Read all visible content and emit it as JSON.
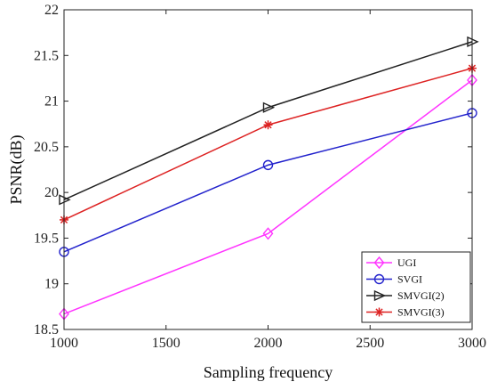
{
  "chart_data": {
    "type": "line",
    "xlabel": "Sampling frequency",
    "ylabel": "PSNR(dB)",
    "x": [
      1000,
      2000,
      3000
    ],
    "xlim": [
      1000,
      3000
    ],
    "ylim": [
      18.5,
      22
    ],
    "xticks": [
      "1000",
      "1500",
      "2000",
      "2500",
      "3000"
    ],
    "yticks": [
      "18.5",
      "19",
      "19.5",
      "20",
      "20.5",
      "21",
      "21.5",
      "22"
    ],
    "grid": false,
    "legend_position": "bottom-right",
    "series": [
      {
        "name": "UGI",
        "values": [
          18.67,
          19.55,
          21.23
        ],
        "color": "#ff33ff",
        "marker": "diamond"
      },
      {
        "name": "SVGI",
        "values": [
          19.35,
          20.3,
          20.87
        ],
        "color": "#2222cc",
        "marker": "circle"
      },
      {
        "name": "SMVGI(2)",
        "values": [
          19.92,
          20.93,
          21.65
        ],
        "color": "#222222",
        "marker": "triangle-right"
      },
      {
        "name": "SMVGI(3)",
        "values": [
          19.7,
          20.74,
          21.36
        ],
        "color": "#dd2222",
        "marker": "star"
      }
    ]
  }
}
